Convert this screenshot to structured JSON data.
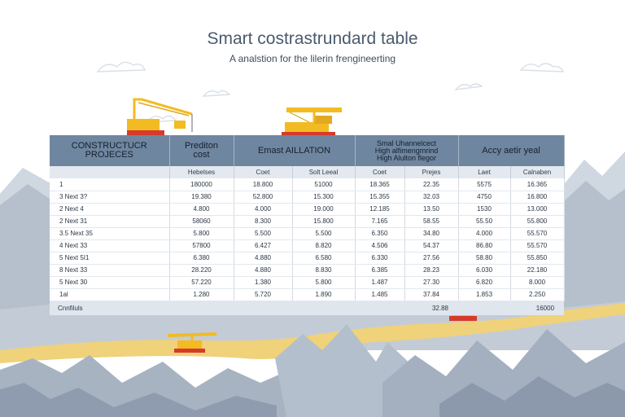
{
  "title": "Smart costrastrundard table",
  "subtitle": "A analstion for the lilerin frengineerting",
  "table": {
    "headers": [
      {
        "lines": [
          "CONSTRUCTUCR",
          "PROJECES"
        ]
      },
      {
        "lines": [
          "Prediton",
          "cost"
        ]
      },
      {
        "lines": [
          "Emast AILLATION"
        ]
      },
      {
        "lines": [
          "Smal Uhannelcect",
          "High alfimengmrind",
          "High Alulton flegor"
        ]
      },
      {
        "lines": [
          "Accy aetir yeal"
        ]
      }
    ],
    "subheaders": [
      "",
      "Hebelses",
      "Coet",
      "Solt Leeal",
      "Coet",
      "Prejes",
      "Laet",
      "Calnaben"
    ],
    "rows": [
      [
        "1",
        "180000",
        "18.800",
        "51000",
        "18.365",
        "22.35",
        "5575",
        "16.365"
      ],
      [
        "3 Next 3?",
        "19.380",
        "52.800",
        "15.300",
        "15.355",
        "32.03",
        "4750",
        "16.800"
      ],
      [
        "2 Next 4",
        "4.800",
        "4.000",
        "19.000",
        "12.185",
        "13.50",
        "1530",
        "13.000"
      ],
      [
        "2 Next 31",
        "58060",
        "8.300",
        "15.800",
        "7.165",
        "58.55",
        "55.50",
        "55.800"
      ],
      [
        "3.5 Next 35",
        "5.800",
        "5.500",
        "5.500",
        "6.350",
        "34.80",
        "4.000",
        "55.570"
      ],
      [
        "4 Next 33",
        "57800",
        "6.427",
        "8.820",
        "4.506",
        "54.37",
        "86.80",
        "55.570"
      ],
      [
        "5 Next 5I1",
        "6.380",
        "4.880",
        "6.580",
        "6.330",
        "27.56",
        "58.80",
        "55.850"
      ],
      [
        "8 Next 33",
        "28.220",
        "4.880",
        "8.830",
        "6.385",
        "28.23",
        "6.030",
        "22.180"
      ],
      [
        "5 Next 30",
        "57.220",
        "1.380",
        "5.800",
        "1.487",
        "27.30",
        "6.820",
        "8.000"
      ],
      [
        "1al",
        "1.280",
        "5.720",
        "1.890",
        "1.485",
        "37.84",
        "1.853",
        "2.250"
      ]
    ],
    "footer": {
      "label": "Cnnfiluls",
      "value1": "32.88",
      "value2": "16000"
    }
  },
  "colors": {
    "header_bg": "#6f86a0",
    "subheader_bg": "#e4e9ef",
    "mountain": "#b4bfcb",
    "road": "#efd279",
    "crane": "#f2bb22"
  }
}
